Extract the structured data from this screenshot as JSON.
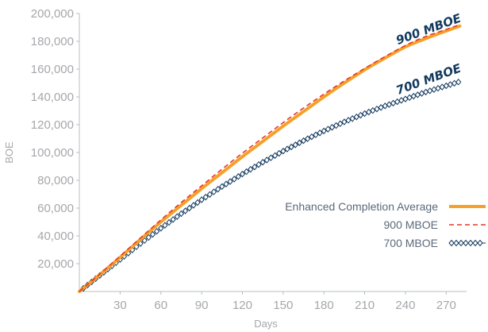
{
  "chart_data": {
    "type": "line",
    "xlabel": "Days",
    "ylabel": "BOE",
    "xlim": [
      0,
      285
    ],
    "ylim": [
      0,
      200000
    ],
    "x_ticks": [
      30,
      60,
      90,
      120,
      150,
      180,
      210,
      240,
      270
    ],
    "y_ticks": [
      20000,
      40000,
      60000,
      80000,
      100000,
      120000,
      140000,
      160000,
      180000,
      200000
    ],
    "x_tick_labels": [
      "30",
      "60",
      "90",
      "120",
      "150",
      "180",
      "210",
      "240",
      "270"
    ],
    "y_tick_labels": [
      "20,000",
      "40,000",
      "60,000",
      "80,000",
      "100,000",
      "120,000",
      "140,000",
      "160,000",
      "180,000",
      "200,000"
    ],
    "grid": false,
    "legend_position": "bottom-right",
    "x": [
      0,
      15,
      30,
      45,
      60,
      75,
      90,
      105,
      120,
      135,
      150,
      165,
      180,
      195,
      210,
      225,
      240,
      255,
      270,
      280
    ],
    "series": [
      {
        "name": "Enhanced Completion Average",
        "color": "#f5a02a",
        "style": "solid-thick",
        "values": [
          0,
          12000,
          24500,
          37500,
          50000,
          62000,
          74000,
          85500,
          97000,
          108000,
          119000,
          129500,
          140000,
          150000,
          159500,
          168000,
          176000,
          182000,
          187500,
          191000
        ]
      },
      {
        "name": "900 MBOE",
        "color": "#e8352b",
        "style": "dashed",
        "values": [
          0,
          12500,
          25500,
          38500,
          51500,
          64000,
          76000,
          88000,
          99500,
          110500,
          121500,
          132000,
          142000,
          151500,
          160500,
          169000,
          177000,
          183500,
          188500,
          192000
        ]
      },
      {
        "name": "700 MBOE",
        "color": "#12395e",
        "style": "diamond-markers",
        "values": [
          0,
          11500,
          23000,
          34500,
          45500,
          56000,
          66000,
          75500,
          84500,
          93000,
          101000,
          108500,
          115500,
          122000,
          128000,
          133500,
          138500,
          143500,
          148000,
          151000
        ]
      }
    ],
    "annotations": [
      {
        "text": "900 MBOE",
        "color": "#12395e",
        "x": 258,
        "y": 186000,
        "series": "900 MBOE"
      },
      {
        "text": "700 MBOE",
        "color": "#12395e",
        "x": 258,
        "y": 150000,
        "series": "700 MBOE"
      }
    ]
  }
}
